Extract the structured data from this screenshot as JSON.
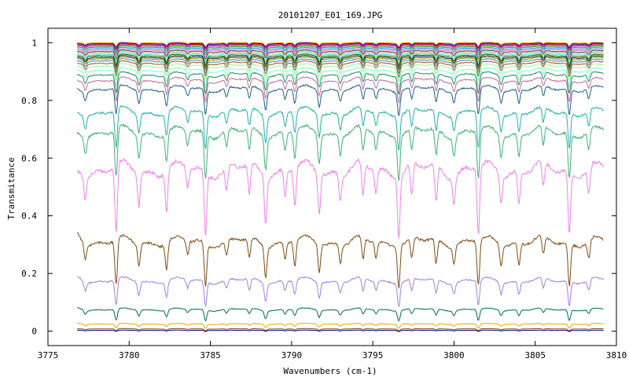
{
  "chart_data": {
    "type": "line",
    "title": "20101207_E01_169.JPG",
    "xlabel": "Wavenumbers (cm-1)",
    "ylabel": "Transmitance",
    "xlim": [
      3775,
      3810
    ],
    "ylim": [
      -0.05,
      1.05
    ],
    "x_range": [
      3776.8,
      3809.2
    ],
    "x_ticks": [
      "3775",
      "3780",
      "3785",
      "3790",
      "3795",
      "3800",
      "3805",
      "3810"
    ],
    "y_ticks": [
      "0",
      "0.2",
      "0.4",
      "0.6",
      "0.8",
      "1"
    ],
    "grid": false,
    "legend": "none",
    "absorption_lines": [
      {
        "x": 3777.3,
        "depth": 0.35
      },
      {
        "x": 3779.2,
        "depth": 1.0
      },
      {
        "x": 3780.6,
        "depth": 0.5
      },
      {
        "x": 3782.3,
        "depth": 0.6
      },
      {
        "x": 3783.6,
        "depth": 0.3
      },
      {
        "x": 3784.7,
        "depth": 0.95
      },
      {
        "x": 3786.0,
        "depth": 0.35
      },
      {
        "x": 3787.4,
        "depth": 0.45
      },
      {
        "x": 3788.4,
        "depth": 0.7
      },
      {
        "x": 3789.6,
        "depth": 0.4
      },
      {
        "x": 3790.2,
        "depth": 0.55
      },
      {
        "x": 3791.7,
        "depth": 0.6
      },
      {
        "x": 3793.0,
        "depth": 0.4
      },
      {
        "x": 3794.4,
        "depth": 0.5
      },
      {
        "x": 3795.2,
        "depth": 0.35
      },
      {
        "x": 3796.6,
        "depth": 0.9
      },
      {
        "x": 3797.4,
        "depth": 0.45
      },
      {
        "x": 3798.9,
        "depth": 0.55
      },
      {
        "x": 3800.0,
        "depth": 0.4
      },
      {
        "x": 3801.5,
        "depth": 1.0
      },
      {
        "x": 3802.9,
        "depth": 0.45
      },
      {
        "x": 3804.0,
        "depth": 0.5
      },
      {
        "x": 3805.5,
        "depth": 0.4
      },
      {
        "x": 3807.1,
        "depth": 0.95
      },
      {
        "x": 3808.3,
        "depth": 0.4
      }
    ],
    "series": [
      {
        "baseline": 1.0,
        "color": "#ffa500",
        "slope": 0.0
      },
      {
        "baseline": 0.997,
        "color": "#0000cc",
        "slope": 0.0
      },
      {
        "baseline": 0.994,
        "color": "#cc0000",
        "slope": 0.0
      },
      {
        "baseline": 0.99,
        "color": "#9400d3",
        "slope": 0.0
      },
      {
        "baseline": 0.985,
        "color": "#00aa00",
        "slope": 0.0
      },
      {
        "baseline": 0.98,
        "color": "#1e90ff",
        "slope": 0.0
      },
      {
        "baseline": 0.975,
        "color": "#ff69b4",
        "slope": 0.0
      },
      {
        "baseline": 0.97,
        "color": "#444444",
        "slope": 0.0
      },
      {
        "baseline": 0.965,
        "color": "#d2b48c",
        "slope": 0.0
      },
      {
        "baseline": 0.96,
        "color": "#40e0d0",
        "slope": 0.0
      },
      {
        "baseline": 0.955,
        "color": "#006400",
        "slope": 0.0
      },
      {
        "baseline": 0.95,
        "color": "#222222",
        "slope": 0.0
      },
      {
        "baseline": 0.945,
        "color": "#8b8b00",
        "slope": 0.0
      },
      {
        "baseline": 0.938,
        "color": "#4682b4",
        "slope": 0.0
      },
      {
        "baseline": 0.93,
        "color": "#a0522d",
        "slope": 0.0
      },
      {
        "baseline": 0.92,
        "color": "#98fb98",
        "slope": 0.0
      },
      {
        "baseline": 0.905,
        "color": "#7fffd4",
        "slope": 0.0
      },
      {
        "baseline": 0.89,
        "color": "#2e8b57",
        "slope": 0.0
      },
      {
        "baseline": 0.87,
        "color": "#bc6fa0",
        "slope": 0.0
      },
      {
        "baseline": 0.84,
        "color": "#1f5f8b",
        "slope": 0.0
      },
      {
        "baseline": 0.76,
        "color": "#20b2aa",
        "slope": 0.0
      },
      {
        "baseline": 0.69,
        "color": "#3cb371",
        "slope": 0.0
      },
      {
        "baseline": 0.56,
        "color": "#ee82ee",
        "slope": 0.0
      },
      {
        "baseline": 0.31,
        "color": "#7f4b12",
        "slope": 0.0
      },
      {
        "baseline": 0.175,
        "color": "#a47fe0",
        "slope": 0.0
      },
      {
        "baseline": 0.075,
        "color": "#006b5a",
        "slope": 0.0
      },
      {
        "baseline": 0.025,
        "color": "#e0a800",
        "slope": 0.0
      },
      {
        "baseline": 0.008,
        "color": "#8b4513",
        "slope": 0.0
      },
      {
        "baseline": 0.003,
        "color": "#000080",
        "slope": 0.0
      }
    ]
  }
}
